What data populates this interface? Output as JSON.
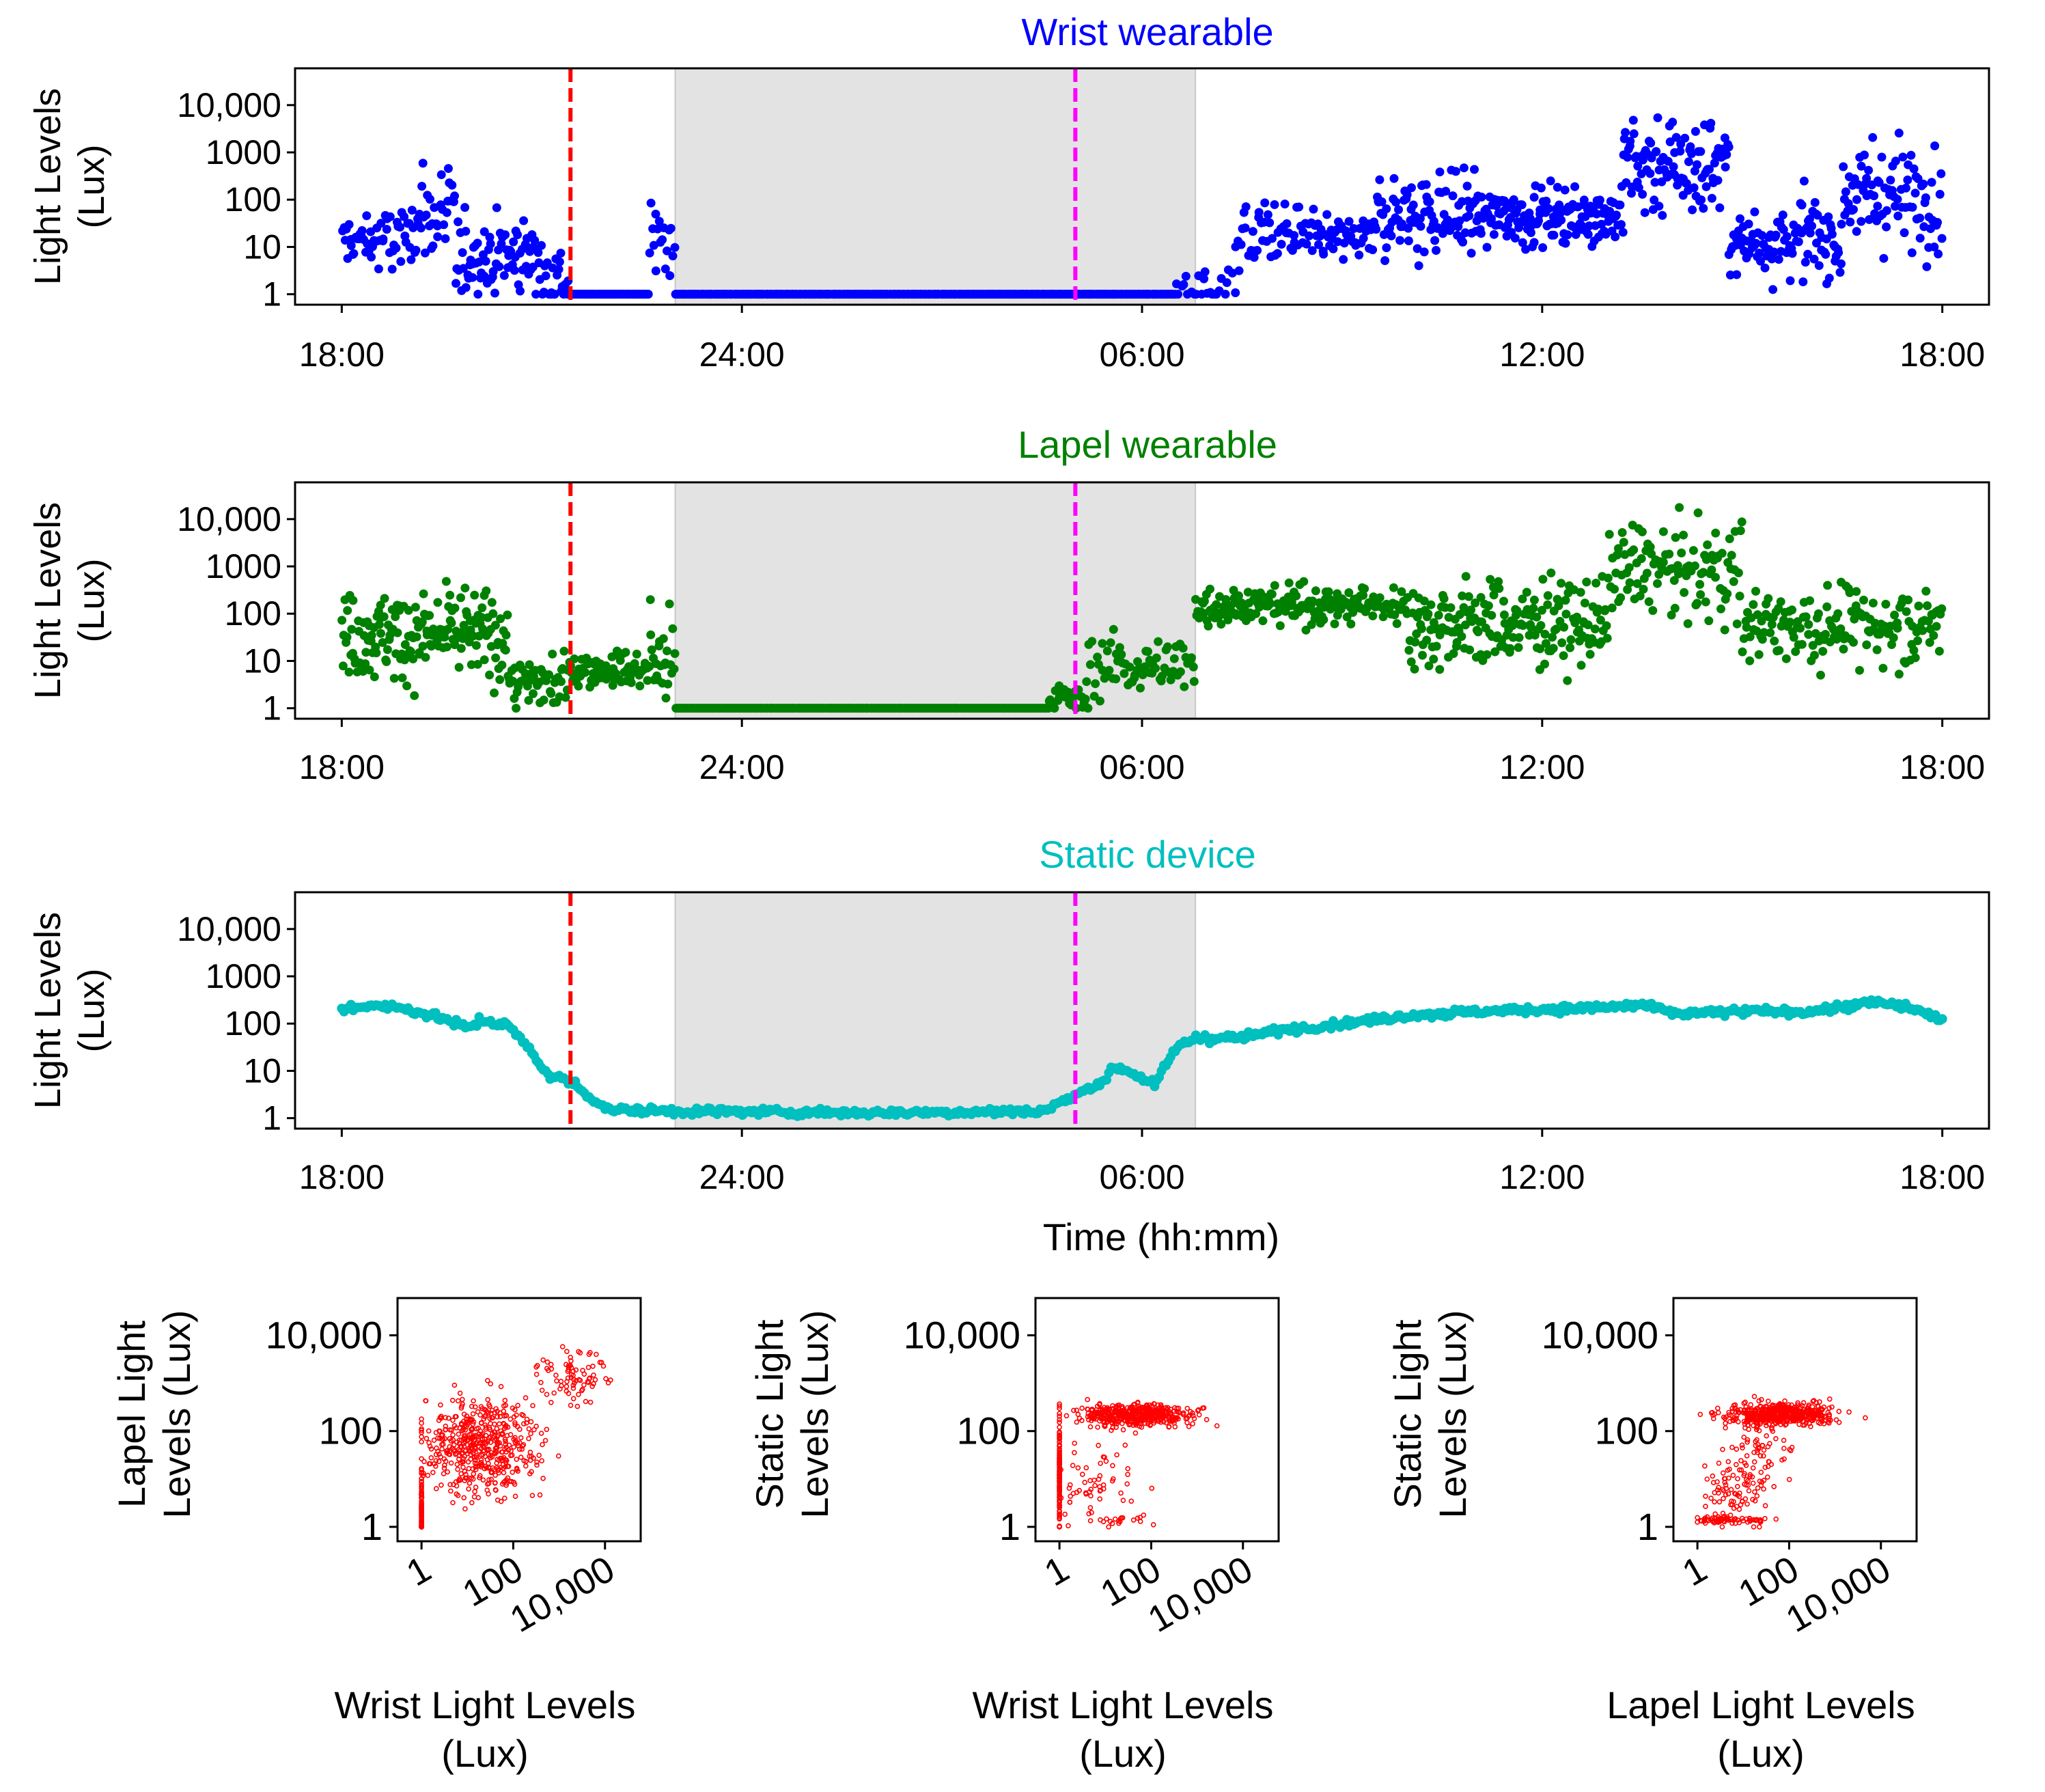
{
  "chart_data": [
    {
      "type": "scatter",
      "title": "Wrist wearable",
      "title_color": "#0000ff",
      "point_color": "#0000ff",
      "ylabel_lines": [
        "Light Levels",
        "(Lux)"
      ],
      "xlabel": "",
      "yscale": "log",
      "ylim": [
        0.6,
        60000
      ],
      "ytick_labels": [
        "1",
        "10",
        "100",
        "1000",
        "10,000"
      ],
      "ytick_values": [
        1,
        10,
        100,
        1000,
        10000
      ],
      "xlim_hours": [
        -0.7,
        24.7
      ],
      "xtick_labels": [
        "18:00",
        "24:00",
        "06:00",
        "12:00",
        "18:00"
      ],
      "xtick_hours": [
        0,
        6,
        12,
        18,
        24
      ],
      "shaded_region_hours": [
        5.0,
        12.8
      ],
      "event_lines": [
        {
          "hour": 3.43,
          "color": "#ff0000",
          "style": "dashed"
        },
        {
          "hour": 11.0,
          "color": "#ff00ff",
          "style": "dashed"
        }
      ],
      "series_profile": [
        {
          "h_start": 0.0,
          "h_end": 1.0,
          "center": 13,
          "spread": 0.35,
          "n": 50
        },
        {
          "h_start": 1.0,
          "h_end": 1.7,
          "center": 40,
          "spread": 0.5,
          "n": 40
        },
        {
          "h_start": 1.7,
          "h_end": 3.0,
          "center": 7,
          "spread": 0.45,
          "n": 80
        },
        {
          "h_start": 3.0,
          "h_end": 3.4,
          "center": 2,
          "spread": 0.4,
          "n": 25
        },
        {
          "h_start": 3.4,
          "h_end": 4.6,
          "center": 1,
          "spread": 0.0,
          "n": 70
        },
        {
          "h_start": 4.6,
          "h_end": 5.0,
          "center": 15,
          "spread": 0.4,
          "n": 18
        },
        {
          "h_start": 5.0,
          "h_end": 12.5,
          "center": 1,
          "spread": 0.0,
          "n": 330
        },
        {
          "h_start": 12.5,
          "h_end": 13.4,
          "center": 1.2,
          "spread": 0.3,
          "n": 25
        },
        {
          "h_start": 13.4,
          "h_end": 14.5,
          "center": 18,
          "spread": 0.35,
          "n": 50
        },
        {
          "h_start": 14.5,
          "h_end": 15.5,
          "center": 15,
          "spread": 0.25,
          "n": 50
        },
        {
          "h_start": 15.5,
          "h_end": 17.0,
          "center": 50,
          "spread": 0.45,
          "n": 100
        },
        {
          "h_start": 17.0,
          "h_end": 19.2,
          "center": 45,
          "spread": 0.3,
          "n": 150
        },
        {
          "h_start": 19.2,
          "h_end": 20.8,
          "center": 500,
          "spread": 0.55,
          "n": 110
        },
        {
          "h_start": 20.8,
          "h_end": 21.8,
          "center": 15,
          "spread": 0.4,
          "n": 60
        },
        {
          "h_start": 21.8,
          "h_end": 22.5,
          "center": 15,
          "spread": 0.45,
          "n": 45
        },
        {
          "h_start": 22.5,
          "h_end": 24.0,
          "center": 120,
          "spread": 0.55,
          "n": 90
        }
      ]
    },
    {
      "type": "scatter",
      "title": "Lapel wearable",
      "title_color": "#008000",
      "point_color": "#008000",
      "ylabel_lines": [
        "Light Levels",
        "(Lux)"
      ],
      "xlabel": "",
      "yscale": "log",
      "ylim": [
        0.6,
        60000
      ],
      "ytick_labels": [
        "1",
        "10",
        "100",
        "1000",
        "10,000"
      ],
      "ytick_values": [
        1,
        10,
        100,
        1000,
        10000
      ],
      "xlim_hours": [
        -0.7,
        24.7
      ],
      "xtick_labels": [
        "18:00",
        "24:00",
        "06:00",
        "12:00",
        "18:00"
      ],
      "xtick_hours": [
        0,
        6,
        12,
        18,
        24
      ],
      "shaded_region_hours": [
        5.0,
        12.8
      ],
      "event_lines": [
        {
          "hour": 3.43,
          "color": "#ff0000",
          "style": "dashed"
        },
        {
          "hour": 11.0,
          "color": "#ff00ff",
          "style": "dashed"
        }
      ],
      "series_profile": [
        {
          "h_start": 0.0,
          "h_end": 2.5,
          "center": 35,
          "spread": 0.45,
          "n": 180
        },
        {
          "h_start": 2.5,
          "h_end": 3.4,
          "center": 3,
          "spread": 0.35,
          "n": 50
        },
        {
          "h_start": 3.4,
          "h_end": 4.6,
          "center": 7,
          "spread": 0.2,
          "n": 70
        },
        {
          "h_start": 4.6,
          "h_end": 5.0,
          "center": 12,
          "spread": 0.5,
          "n": 25
        },
        {
          "h_start": 5.0,
          "h_end": 10.6,
          "center": 1,
          "spread": 0.0,
          "n": 260
        },
        {
          "h_start": 10.6,
          "h_end": 11.2,
          "center": 1.6,
          "spread": 0.15,
          "n": 30
        },
        {
          "h_start": 11.2,
          "h_end": 12.8,
          "center": 8,
          "spread": 0.3,
          "n": 70
        },
        {
          "h_start": 12.8,
          "h_end": 15.5,
          "center": 150,
          "spread": 0.2,
          "n": 160
        },
        {
          "h_start": 15.5,
          "h_end": 16.0,
          "center": 150,
          "spread": 0.2,
          "n": 25
        },
        {
          "h_start": 16.0,
          "h_end": 19.0,
          "center": 60,
          "spread": 0.45,
          "n": 200
        },
        {
          "h_start": 19.0,
          "h_end": 21.0,
          "center": 800,
          "spread": 0.5,
          "n": 110
        },
        {
          "h_start": 21.0,
          "h_end": 24.0,
          "center": 60,
          "spread": 0.4,
          "n": 160
        }
      ]
    },
    {
      "type": "scatter",
      "title": "Static device",
      "title_color": "#00bfbf",
      "point_color": "#00bfbf",
      "ylabel_lines": [
        "Light Levels",
        "(Lux)"
      ],
      "xlabel": "Time (hh:mm)",
      "yscale": "log",
      "ylim": [
        0.6,
        60000
      ],
      "ytick_labels": [
        "1",
        "10",
        "100",
        "1000",
        "10,000"
      ],
      "ytick_values": [
        1,
        10,
        100,
        1000,
        10000
      ],
      "xlim_hours": [
        -0.7,
        24.7
      ],
      "xtick_labels": [
        "18:00",
        "24:00",
        "06:00",
        "12:00",
        "18:00"
      ],
      "xtick_hours": [
        0,
        6,
        12,
        18,
        24
      ],
      "shaded_region_hours": [
        5.0,
        12.8
      ],
      "event_lines": [
        {
          "hour": 3.43,
          "color": "#ff0000",
          "style": "dashed"
        },
        {
          "hour": 11.0,
          "color": "#ff00ff",
          "style": "dashed"
        }
      ],
      "line_profile": [
        [
          0.0,
          200
        ],
        [
          0.5,
          250
        ],
        [
          1.0,
          200
        ],
        [
          1.5,
          130
        ],
        [
          1.9,
          80
        ],
        [
          2.1,
          120
        ],
        [
          2.5,
          90
        ],
        [
          2.8,
          30
        ],
        [
          3.1,
          8
        ],
        [
          3.43,
          6
        ],
        [
          3.7,
          3
        ],
        [
          4.0,
          1.5
        ],
        [
          5.0,
          1.4
        ],
        [
          8.0,
          1.3
        ],
        [
          10.5,
          1.4
        ],
        [
          11.0,
          3
        ],
        [
          11.4,
          6
        ],
        [
          11.6,
          12
        ],
        [
          11.8,
          10
        ],
        [
          12.2,
          5
        ],
        [
          12.5,
          30
        ],
        [
          12.8,
          50
        ],
        [
          13.5,
          50
        ],
        [
          14.0,
          70
        ],
        [
          15.0,
          100
        ],
        [
          16.0,
          150
        ],
        [
          17.0,
          180
        ],
        [
          18.0,
          200
        ],
        [
          19.0,
          220
        ],
        [
          19.5,
          250
        ],
        [
          20.0,
          160
        ],
        [
          21.0,
          180
        ],
        [
          22.0,
          180
        ],
        [
          23.0,
          280
        ],
        [
          23.5,
          220
        ],
        [
          24.0,
          120
        ]
      ],
      "n_points": 700
    },
    {
      "type": "scatter",
      "title": "",
      "point_color": "#ff0000",
      "xlabel_lines": [
        "Wrist Light Levels",
        "(Lux)"
      ],
      "ylabel_lines": [
        "Lapel Light",
        "Levels (Lux)"
      ],
      "xscale": "log",
      "yscale": "log",
      "xlim": [
        0.3,
        60000
      ],
      "ylim": [
        0.5,
        60000
      ],
      "xtick_labels": [
        "1",
        "100",
        "10,000"
      ],
      "xtick_values": [
        1,
        100,
        10000
      ],
      "ytick_labels": [
        "1",
        "100",
        "10,000"
      ],
      "ytick_values": [
        1,
        100,
        10000
      ],
      "clusters": [
        {
          "x": 20,
          "y": 50,
          "sx": 0.6,
          "sy": 0.5,
          "n": 500
        },
        {
          "x": 1,
          "y": 2,
          "sx": 0.0,
          "sy": 0.45,
          "n": 120
        },
        {
          "x": 2000,
          "y": 1500,
          "sx": 0.35,
          "sy": 0.3,
          "n": 80
        }
      ]
    },
    {
      "type": "scatter",
      "title": "",
      "point_color": "#ff0000",
      "xlabel_lines": [
        "Wrist Light Levels",
        "(Lux)"
      ],
      "ylabel_lines": [
        "Static Light",
        "Levels (Lux)"
      ],
      "xscale": "log",
      "yscale": "log",
      "xlim": [
        0.3,
        60000
      ],
      "ylim": [
        0.5,
        60000
      ],
      "xtick_labels": [
        "1",
        "100",
        "10,000"
      ],
      "xtick_values": [
        1,
        100,
        10000
      ],
      "ytick_labels": [
        "1",
        "100",
        "10,000"
      ],
      "ytick_values": [
        1,
        100,
        10000
      ],
      "clusters": [
        {
          "x": 50,
          "y": 220,
          "sx": 0.6,
          "sy": 0.12,
          "n": 450
        },
        {
          "x": 1,
          "y": 15,
          "sx": 0.0,
          "sy": 0.6,
          "n": 140
        },
        {
          "x": 5,
          "y": 8,
          "sx": 0.5,
          "sy": 0.4,
          "n": 60
        },
        {
          "x": 20,
          "y": 1.4,
          "sx": 0.5,
          "sy": 0.05,
          "n": 20
        }
      ]
    },
    {
      "type": "scatter",
      "title": "",
      "point_color": "#ff0000",
      "xlabel_lines": [
        "Lapel Light Levels",
        "(Lux)"
      ],
      "ylabel_lines": [
        "Static Light",
        "Levels (Lux)"
      ],
      "xscale": "log",
      "yscale": "log",
      "xlim": [
        0.3,
        60000
      ],
      "ylim": [
        0.5,
        60000
      ],
      "xtick_labels": [
        "1",
        "100",
        "10,000"
      ],
      "xtick_values": [
        1,
        100,
        10000
      ],
      "ytick_labels": [
        "1",
        "100",
        "10,000"
      ],
      "ytick_values": [
        1,
        100,
        10000
      ],
      "clusters": [
        {
          "x": 60,
          "y": 230,
          "sx": 0.55,
          "sy": 0.12,
          "n": 500
        },
        {
          "x": 5,
          "y": 1.4,
          "sx": 0.45,
          "sy": 0.04,
          "n": 70
        },
        {
          "x": 6,
          "y": 6,
          "sx": 0.35,
          "sy": 0.35,
          "n": 80
        },
        {
          "x": 25,
          "y": 40,
          "sx": 0.3,
          "sy": 0.3,
          "n": 60
        }
      ]
    }
  ]
}
